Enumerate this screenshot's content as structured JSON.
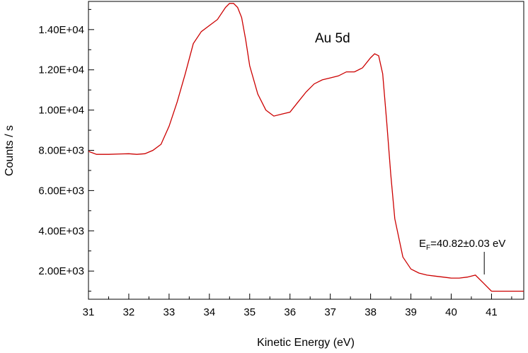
{
  "chart_data": {
    "type": "line",
    "xlabel": "Kinetic Energy (eV)",
    "ylabel": "Counts / s",
    "xlim": [
      31,
      41.8
    ],
    "ylim": [
      600,
      15400
    ],
    "x_ticks": [
      31,
      32,
      33,
      34,
      35,
      36,
      37,
      38,
      39,
      40,
      41
    ],
    "x_tick_labels": [
      "31",
      "32",
      "33",
      "34",
      "35",
      "36",
      "37",
      "38",
      "39",
      "40",
      "41"
    ],
    "y_ticks": [
      2000,
      4000,
      6000,
      8000,
      10000,
      12000,
      14000
    ],
    "y_tick_labels": [
      "2.00E+03",
      "4.00E+03",
      "6.00E+03",
      "8.00E+03",
      "1.00E+04",
      "1.20E+04",
      "1.40E+04"
    ],
    "grid": false,
    "line_color": "#cc0000",
    "series": [
      {
        "x": [
          31.0,
          31.2,
          31.5,
          31.8,
          32.0,
          32.2,
          32.4,
          32.6,
          32.8,
          33.0,
          33.2,
          33.4,
          33.6,
          33.8,
          34.0,
          34.2,
          34.4,
          34.5,
          34.6,
          34.7,
          34.8,
          34.9,
          35.0,
          35.2,
          35.4,
          35.6,
          35.8,
          36.0,
          36.2,
          36.4,
          36.6,
          36.8,
          37.0,
          37.2,
          37.4,
          37.6,
          37.8,
          38.0,
          38.1,
          38.2,
          38.3,
          38.4,
          38.5,
          38.6,
          38.8,
          39.0,
          39.2,
          39.4,
          39.6,
          39.8,
          40.0,
          40.2,
          40.4,
          40.6,
          40.8,
          41.0,
          41.2,
          41.4,
          41.6,
          41.8
        ],
        "y": [
          7950,
          7800,
          7800,
          7820,
          7830,
          7800,
          7830,
          8000,
          8300,
          9200,
          10400,
          11800,
          13300,
          13900,
          14200,
          14500,
          15100,
          15300,
          15300,
          15100,
          14600,
          13500,
          12200,
          10800,
          10000,
          9700,
          9800,
          9900,
          10400,
          10900,
          11300,
          11500,
          11600,
          11700,
          11900,
          11900,
          12100,
          12600,
          12800,
          12700,
          11800,
          9400,
          6800,
          4600,
          2700,
          2100,
          1900,
          1800,
          1750,
          1700,
          1650,
          1650,
          1700,
          1800,
          1400,
          1000,
          1000,
          1000,
          1000,
          1000
        ]
      }
    ],
    "annotations": [
      {
        "text": "Au 5d"
      },
      {
        "text_main": "E",
        "text_sub": "F",
        "text_rest": "=40.82±0.03 eV",
        "x": 40.82
      }
    ]
  }
}
